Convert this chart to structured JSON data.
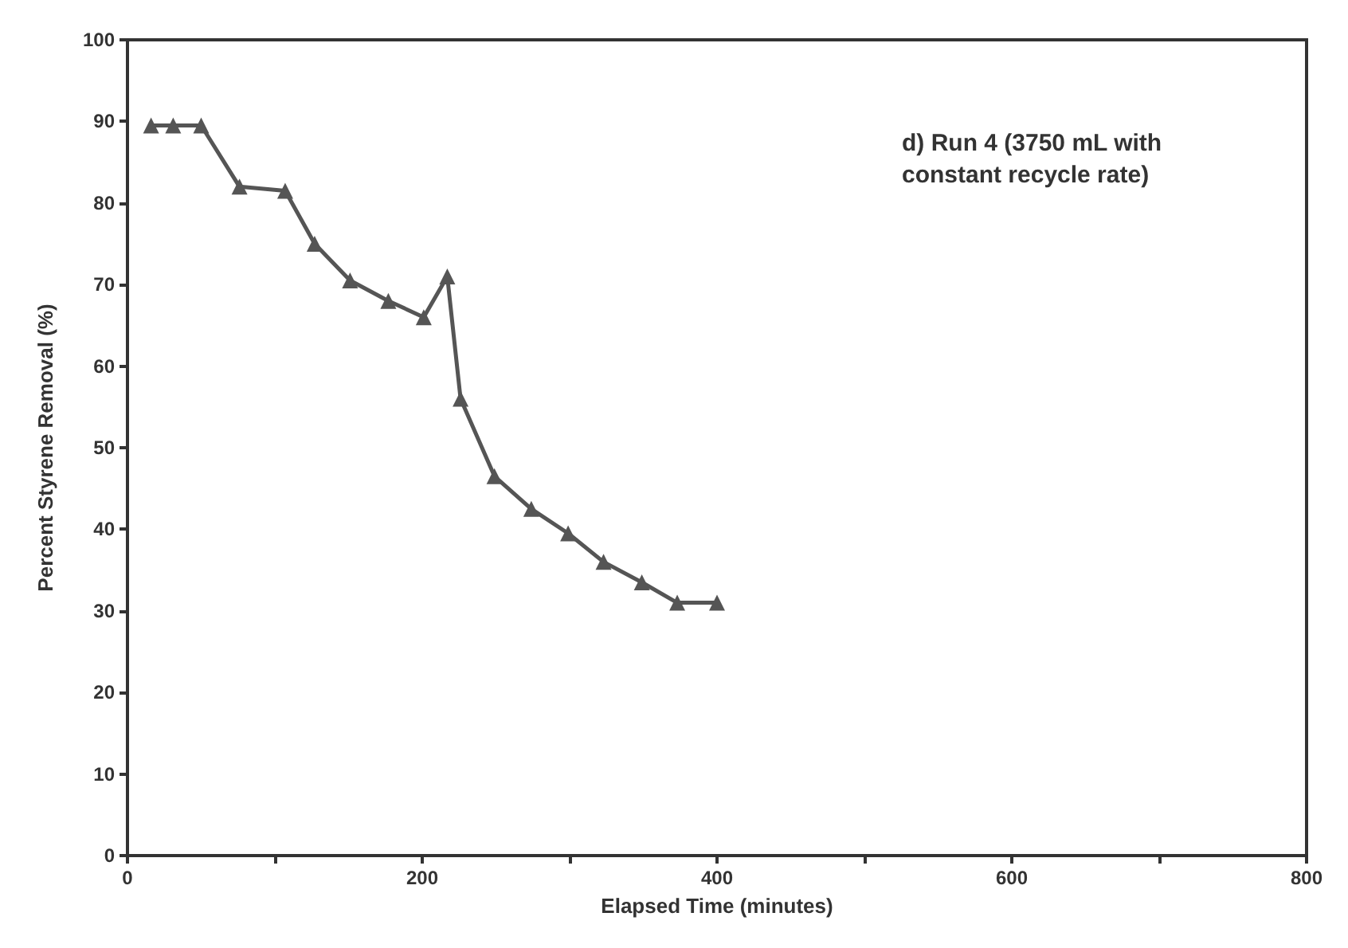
{
  "chart_data": {
    "type": "line",
    "title": "d) Run 4 (3750 mL with constant recycle rate)",
    "xlabel": "Elapsed Time (minutes)",
    "ylabel": "Percent Styrene Removal (%)",
    "x": [
      16,
      31,
      50,
      76,
      107,
      127,
      151,
      177,
      201,
      217,
      226,
      249,
      274,
      299,
      323,
      349,
      373,
      400
    ],
    "series": [
      {
        "color": "#555555",
        "values": [
          89.5,
          89.5,
          89.5,
          82,
          81.5,
          75,
          70.5,
          68,
          66,
          71,
          56,
          46.5,
          42.5,
          39.5,
          36,
          33.5,
          31,
          31
        ]
      }
    ],
    "xlim": [
      0,
      800
    ],
    "xticks": [
      0,
      {
        "value": 100,
        "label": null
      },
      200,
      {
        "value": 300,
        "label": null
      },
      400,
      {
        "value": 500,
        "label": null
      },
      600,
      {
        "value": 700,
        "label": null
      },
      800
    ],
    "ylim": [
      0,
      100
    ],
    "yticks": [
      0,
      10,
      20,
      30,
      40,
      50,
      60,
      70,
      80,
      90,
      100
    ],
    "grid": false,
    "marker": "triangle",
    "line_style": "solid"
  }
}
